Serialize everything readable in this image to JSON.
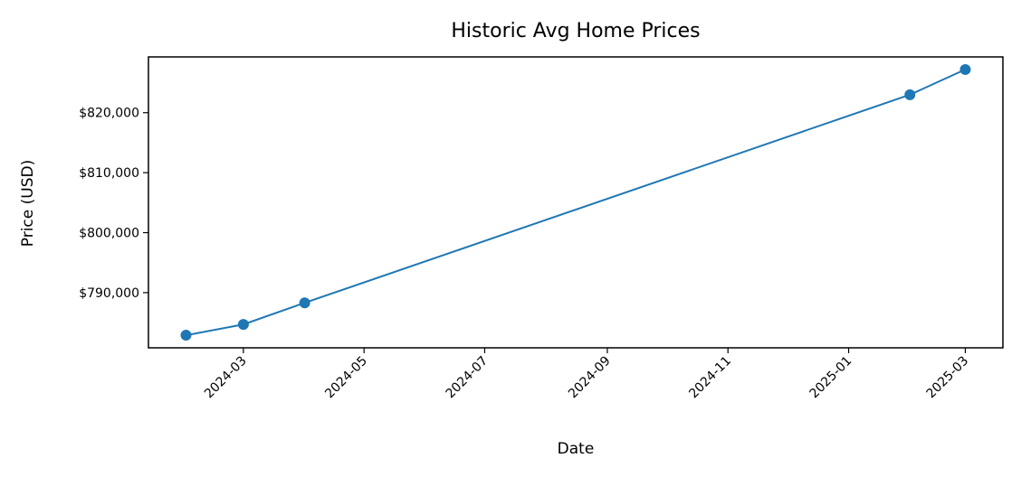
{
  "chart_data": {
    "type": "line",
    "title": "Historic Avg Home Prices",
    "xlabel": "Date",
    "ylabel": "Price (USD)",
    "x": [
      "2024-02-01",
      "2024-03-01",
      "2024-04-01",
      "2025-02-01",
      "2025-03-01"
    ],
    "series": [
      {
        "values": [
          782900,
          784700,
          788300,
          823000,
          827200
        ],
        "color": "#1f77b4",
        "marker": "circle"
      }
    ],
    "xlim": [
      "2024-01-13",
      "2025-03-20"
    ],
    "ylim": [
      780800,
      829300
    ],
    "x_ticks": [
      "2024-03-01",
      "2024-05-01",
      "2024-07-01",
      "2024-09-01",
      "2024-11-01",
      "2025-01-01",
      "2025-03-01"
    ],
    "x_tick_labels": [
      "2024-03",
      "2024-05",
      "2024-07",
      "2024-09",
      "2024-11",
      "2025-01",
      "2025-03"
    ],
    "y_ticks": [
      790000,
      800000,
      810000,
      820000
    ],
    "y_tick_labels": [
      "$790,000",
      "$800,000",
      "$810,000",
      "$820,000"
    ],
    "grid": false,
    "legend": "none"
  }
}
